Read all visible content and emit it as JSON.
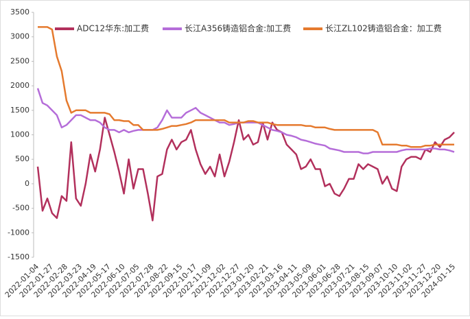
{
  "chart_data": {
    "type": "line",
    "categories": [
      "2022-01-04",
      null,
      null,
      "2022-01-27",
      null,
      null,
      "2022-02-28",
      null,
      null,
      "2022-03-23",
      null,
      null,
      "2022-04-19",
      null,
      null,
      "2022-05-17",
      null,
      null,
      "2022-06-10",
      null,
      null,
      "2022-07-05",
      null,
      null,
      "2022-07-28",
      null,
      null,
      "2022-08-22",
      null,
      null,
      "2022-09-15",
      null,
      null,
      "2022-10-17",
      null,
      null,
      "2022-11-09",
      null,
      null,
      "2022-12-02",
      null,
      null,
      "2022-12-27",
      null,
      null,
      "2023-01-20",
      null,
      null,
      "2023-02-21",
      null,
      null,
      "2023-03-16",
      null,
      null,
      "2023-04-11",
      null,
      null,
      "2023-05-09",
      null,
      null,
      "2023-06-01",
      null,
      null,
      "2023-06-28",
      null,
      null,
      "2023-07-21",
      null,
      null,
      "2023-08-15",
      null,
      null,
      "2023-09-07",
      null,
      null,
      "2023-10-10",
      null,
      null,
      "2023-11-02",
      null,
      null,
      "2023-11-27",
      null,
      null,
      "2023-12-20",
      null,
      null,
      "2024-01-15"
    ],
    "series": [
      {
        "name": "ADC12华东:加工费",
        "color": "#b2305c",
        "values": [
          350,
          -550,
          -300,
          -600,
          -700,
          -250,
          -350,
          850,
          -300,
          -450,
          0,
          600,
          250,
          700,
          1350,
          1000,
          650,
          250,
          -200,
          500,
          -100,
          300,
          300,
          -200,
          -750,
          150,
          200,
          700,
          900,
          700,
          850,
          900,
          1100,
          700,
          400,
          200,
          350,
          150,
          600,
          150,
          450,
          850,
          1300,
          900,
          1000,
          800,
          850,
          1250,
          900,
          1250,
          1100,
          1050,
          800,
          700,
          600,
          300,
          350,
          500,
          300,
          300,
          -50,
          0,
          -200,
          -250,
          -100,
          100,
          100,
          400,
          300,
          400,
          350,
          300,
          0,
          150,
          -100,
          -150,
          350,
          500,
          550,
          550,
          500,
          700,
          650,
          850,
          750,
          900,
          950,
          1050
        ]
      },
      {
        "name": "长江A356铸造铝合金:加工费",
        "color": "#b56dd9",
        "values": [
          1950,
          1650,
          1600,
          1500,
          1400,
          1150,
          1200,
          1300,
          1400,
          1400,
          1350,
          1300,
          1300,
          1250,
          1150,
          1100,
          1100,
          1050,
          1100,
          1050,
          1080,
          1100,
          1100,
          1100,
          1100,
          1150,
          1300,
          1500,
          1350,
          1350,
          1350,
          1450,
          1500,
          1550,
          1450,
          1400,
          1350,
          1300,
          1250,
          1250,
          1200,
          1220,
          1250,
          1250,
          1250,
          1250,
          1250,
          1200,
          1150,
          1100,
          1080,
          1050,
          1000,
          980,
          950,
          900,
          880,
          850,
          820,
          800,
          780,
          720,
          700,
          680,
          650,
          650,
          650,
          650,
          620,
          620,
          650,
          650,
          650,
          650,
          650,
          650,
          680,
          700,
          700,
          700,
          700,
          700,
          720,
          720,
          700,
          700,
          680,
          650
        ]
      },
      {
        "name": "长江ZL102铸造铝合金：加工费",
        "color": "#e57a2e",
        "values": [
          3200,
          3200,
          3200,
          3150,
          2600,
          2300,
          1700,
          1450,
          1500,
          1500,
          1500,
          1450,
          1450,
          1450,
          1450,
          1420,
          1300,
          1300,
          1280,
          1280,
          1200,
          1200,
          1100,
          1100,
          1100,
          1100,
          1120,
          1150,
          1180,
          1180,
          1200,
          1220,
          1250,
          1300,
          1300,
          1300,
          1300,
          1300,
          1300,
          1300,
          1250,
          1250,
          1250,
          1250,
          1280,
          1280,
          1250,
          1250,
          1250,
          1220,
          1200,
          1200,
          1200,
          1200,
          1200,
          1200,
          1180,
          1180,
          1150,
          1150,
          1150,
          1120,
          1100,
          1100,
          1100,
          1100,
          1100,
          1100,
          1100,
          1100,
          1100,
          1050,
          800,
          800,
          800,
          800,
          780,
          780,
          750,
          750,
          750,
          780,
          780,
          800,
          800,
          800,
          800,
          800
        ]
      }
    ],
    "ylim": [
      -1500,
      3500
    ],
    "yticks": [
      -1500,
      -1000,
      -500,
      0,
      500,
      1000,
      1500,
      2000,
      2500,
      3000,
      3500
    ]
  }
}
